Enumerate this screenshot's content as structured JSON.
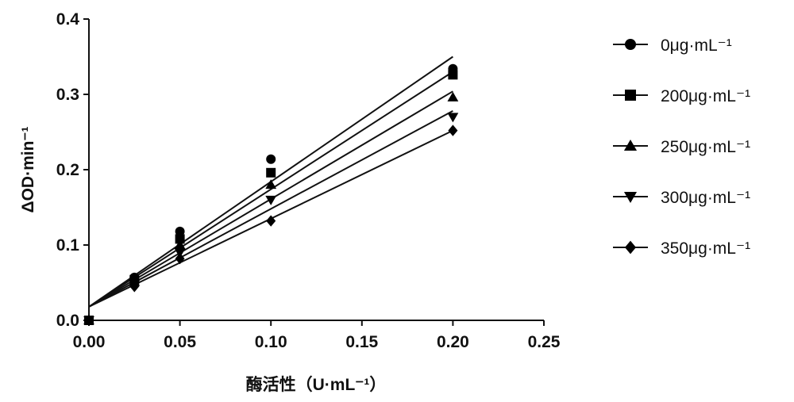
{
  "chart_data": {
    "type": "scatter",
    "xlabel": "酶活性（U·mL⁻¹）",
    "ylabel": "ΔOD·min⁻¹",
    "xlim": [
      0,
      0.25
    ],
    "ylim": [
      0,
      0.4
    ],
    "xticks": [
      0.0,
      0.05,
      0.1,
      0.15,
      0.2,
      0.25
    ],
    "yticks": [
      0.0,
      0.1,
      0.2,
      0.3,
      0.4
    ],
    "xtick_labels": [
      "0.00",
      "0.05",
      "0.10",
      "0.15",
      "0.20",
      "0.25"
    ],
    "ytick_labels": [
      "0.0",
      "0.1",
      "0.2",
      "0.3",
      "0.4"
    ],
    "grid": false,
    "legend_position": "right",
    "x": [
      0,
      0.025,
      0.05,
      0.1,
      0.2
    ],
    "series": [
      {
        "name": "0μg·mL⁻¹",
        "marker": "circle",
        "values": [
          0,
          0.057,
          0.118,
          0.214,
          0.334
        ],
        "fit": {
          "intercept": 0.018,
          "slope": 1.66
        }
      },
      {
        "name": "200μg·mL⁻¹",
        "marker": "square",
        "values": [
          0,
          0.054,
          0.108,
          0.196,
          0.326
        ],
        "fit": {
          "intercept": 0.018,
          "slope": 1.56
        }
      },
      {
        "name": "250μg·mL⁻¹",
        "marker": "triangle-up",
        "values": [
          0,
          0.051,
          0.1,
          0.18,
          0.296
        ],
        "fit": {
          "intercept": 0.018,
          "slope": 1.43
        }
      },
      {
        "name": "300μg·mL⁻¹",
        "marker": "triangle-down",
        "values": [
          0,
          0.048,
          0.09,
          0.16,
          0.27
        ],
        "fit": {
          "intercept": 0.018,
          "slope": 1.3
        }
      },
      {
        "name": "350μg·mL⁻¹",
        "marker": "diamond",
        "values": [
          0,
          0.045,
          0.082,
          0.132,
          0.252
        ],
        "fit": {
          "intercept": 0.018,
          "slope": 1.17
        }
      }
    ]
  }
}
